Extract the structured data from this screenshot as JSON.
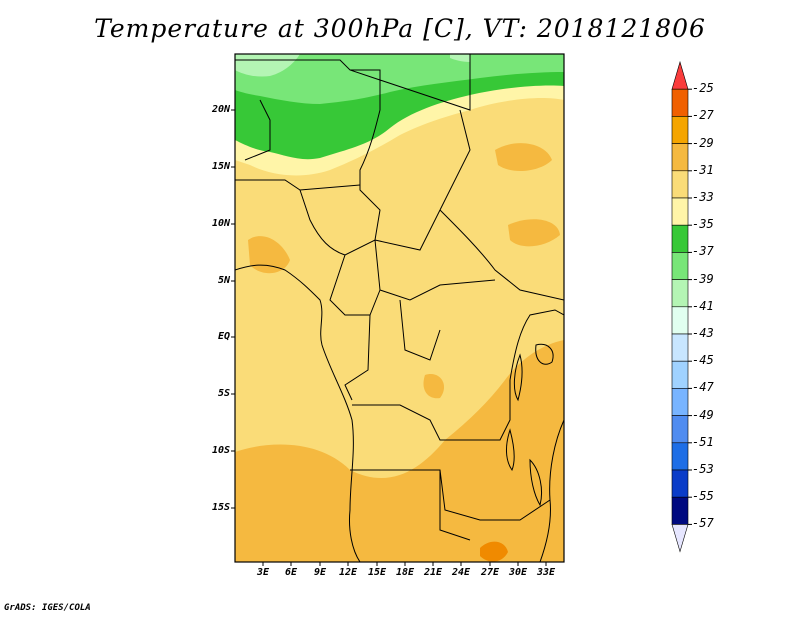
{
  "title": "Temperature at 300hPa [C], VT: 2018121806",
  "credit": "GrADS: IGES/COLA",
  "map": {
    "variable": "Temperature",
    "level": "300hPa",
    "units": "C",
    "valid_time": "2018121806",
    "lat_ticks": [
      "20N",
      "15N",
      "10N",
      "5N",
      "EQ",
      "5S",
      "10S",
      "15S"
    ],
    "lon_ticks": [
      "3E",
      "6E",
      "9E",
      "12E",
      "15E",
      "18E",
      "21E",
      "24E",
      "27E",
      "30E",
      "33E"
    ]
  },
  "colorbar": {
    "labels": [
      "-25",
      "-27",
      "-29",
      "-31",
      "-33",
      "-35",
      "-37",
      "-39",
      "-41",
      "-43",
      "-45",
      "-47",
      "-49",
      "-51",
      "-53",
      "-55",
      "-57"
    ],
    "colors": [
      "#fa3c3c",
      "#f06000",
      "#f5a500",
      "#f5b940",
      "#fadc78",
      "#fff5a8",
      "#37c837",
      "#78e678",
      "#b4f5b4",
      "#e1fff0",
      "#c8e6ff",
      "#a0d2ff",
      "#78b4ff",
      "#508cf0",
      "#1e6ee6",
      "#0a3cc8",
      "#000a80",
      "#e6e6ff"
    ]
  }
}
